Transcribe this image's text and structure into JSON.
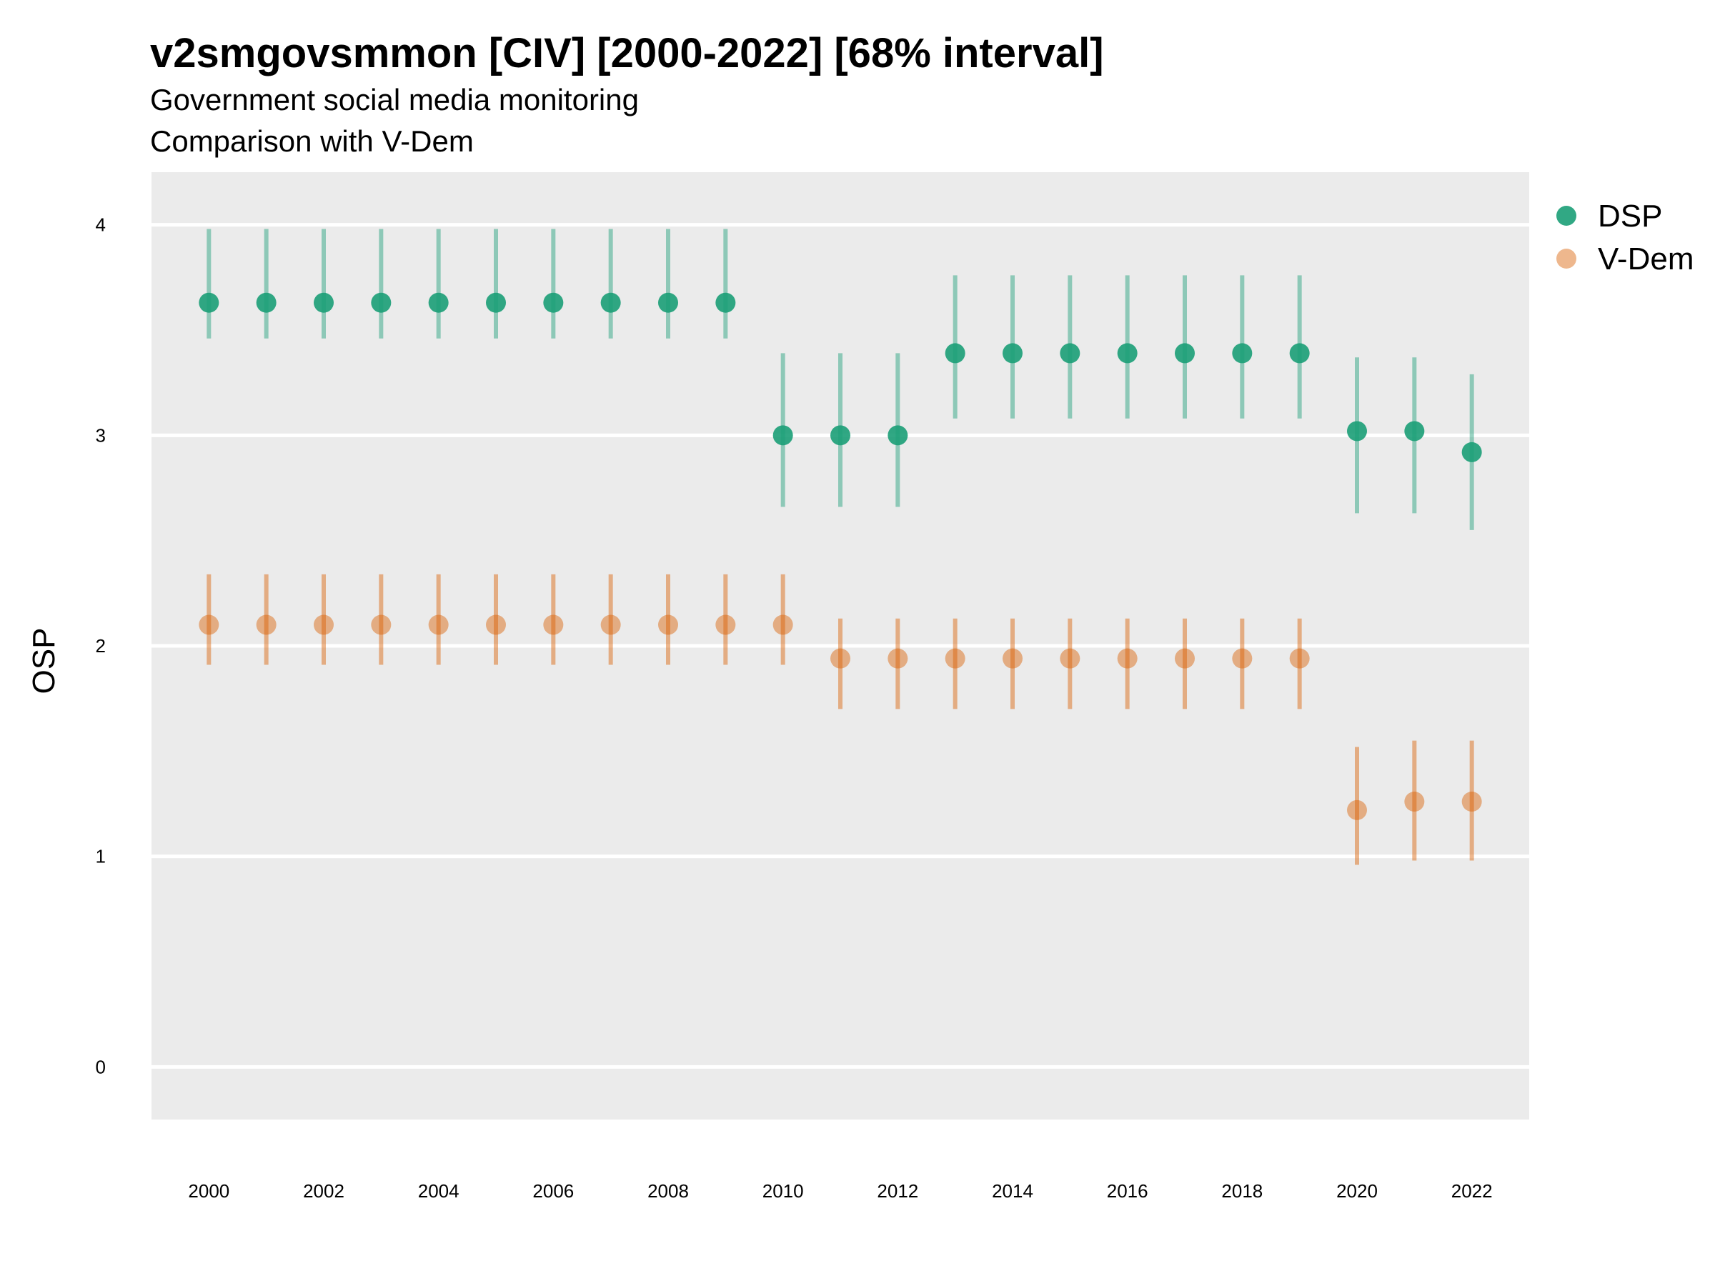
{
  "chart_data": {
    "type": "scatter",
    "title": "v2smgovsmmon [CIV] [2000-2022] [68% interval]",
    "subtitle": "Government social media monitoring",
    "subtitle2": "Comparison with V-Dem",
    "xlabel": "",
    "ylabel": "OSP",
    "ylim": [
      -0.25,
      4.25
    ],
    "yticks": [
      0,
      1,
      2,
      3,
      4
    ],
    "xticks": [
      2000,
      2002,
      2004,
      2006,
      2008,
      2010,
      2012,
      2014,
      2016,
      2018,
      2020,
      2022
    ],
    "xlim": [
      1999,
      2023
    ],
    "grid": true,
    "legend_position": "right",
    "x": [
      2000,
      2001,
      2002,
      2003,
      2004,
      2005,
      2006,
      2007,
      2008,
      2009,
      2010,
      2011,
      2012,
      2013,
      2014,
      2015,
      2016,
      2017,
      2018,
      2019,
      2020,
      2021,
      2022
    ],
    "series": [
      {
        "name": "DSP",
        "color": "#1b9e77",
        "values": [
          3.63,
          3.63,
          3.63,
          3.63,
          3.63,
          3.63,
          3.63,
          3.63,
          3.63,
          3.63,
          3.0,
          3.0,
          3.0,
          3.39,
          3.39,
          3.39,
          3.39,
          3.39,
          3.39,
          3.39,
          3.02,
          3.02,
          2.92
        ],
        "lower": [
          3.46,
          3.46,
          3.46,
          3.46,
          3.46,
          3.46,
          3.46,
          3.46,
          3.46,
          3.46,
          2.66,
          2.66,
          2.66,
          3.08,
          3.08,
          3.08,
          3.08,
          3.08,
          3.08,
          3.08,
          2.63,
          2.63,
          2.55
        ],
        "upper": [
          3.98,
          3.98,
          3.98,
          3.98,
          3.98,
          3.98,
          3.98,
          3.98,
          3.98,
          3.98,
          3.39,
          3.39,
          3.39,
          3.76,
          3.76,
          3.76,
          3.76,
          3.76,
          3.76,
          3.76,
          3.37,
          3.37,
          3.29
        ]
      },
      {
        "name": "V-Dem",
        "color": "#d95f02",
        "values": [
          2.1,
          2.1,
          2.1,
          2.1,
          2.1,
          2.1,
          2.1,
          2.1,
          2.1,
          2.1,
          2.1,
          1.94,
          1.94,
          1.94,
          1.94,
          1.94,
          1.94,
          1.94,
          1.94,
          1.94,
          1.22,
          1.26,
          1.26
        ],
        "lower": [
          1.91,
          1.91,
          1.91,
          1.91,
          1.91,
          1.91,
          1.91,
          1.91,
          1.91,
          1.91,
          1.91,
          1.7,
          1.7,
          1.7,
          1.7,
          1.7,
          1.7,
          1.7,
          1.7,
          1.7,
          0.96,
          0.98,
          0.98
        ],
        "upper": [
          2.34,
          2.34,
          2.34,
          2.34,
          2.34,
          2.34,
          2.34,
          2.34,
          2.34,
          2.34,
          2.34,
          2.13,
          2.13,
          2.13,
          2.13,
          2.13,
          2.13,
          2.13,
          2.13,
          2.13,
          1.52,
          1.55,
          1.55
        ]
      }
    ]
  }
}
